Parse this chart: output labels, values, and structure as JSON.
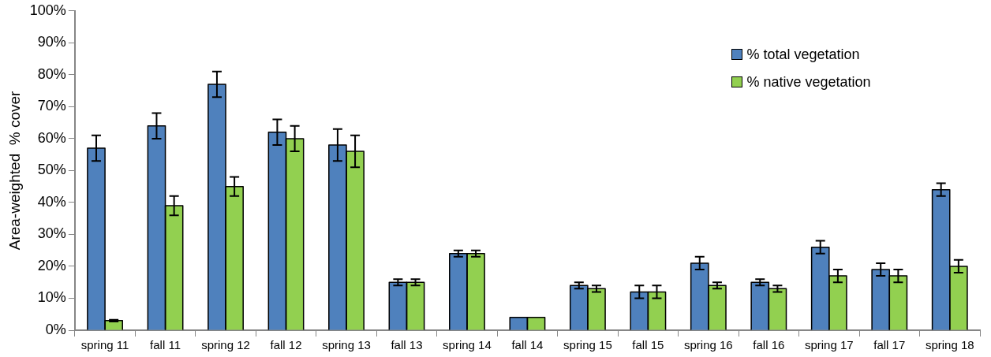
{
  "chart_data": {
    "type": "bar",
    "ylabel": "Area-weighted  % cover",
    "categories": [
      "spring 11",
      "fall 11",
      "spring 12",
      "fall 12",
      "spring 13",
      "fall 13",
      "spring 14",
      "fall 14",
      "spring 15",
      "fall 15",
      "spring 16",
      "fall 16",
      "spring 17",
      "fall 17",
      "spring 18"
    ],
    "series": [
      {
        "name": "% total vegetation",
        "color": "#4f81bd",
        "values": [
          57,
          64,
          77,
          62,
          58,
          15,
          24,
          4,
          14,
          12,
          21,
          15,
          26,
          19,
          44
        ],
        "errors": [
          4,
          4,
          4,
          4,
          5,
          1,
          1,
          null,
          1,
          2,
          2,
          1,
          2,
          2,
          2
        ]
      },
      {
        "name": "% native vegetation",
        "color": "#92d050",
        "values": [
          3,
          39,
          45,
          60,
          56,
          15,
          24,
          4,
          13,
          12,
          14,
          13,
          17,
          17,
          20
        ],
        "errors": [
          0.3,
          3,
          3,
          4,
          5,
          1,
          1,
          null,
          1,
          2,
          1,
          1,
          2,
          2,
          2
        ]
      }
    ],
    "ylim": [
      0,
      100
    ],
    "yticks": [
      {
        "value": 0,
        "label": "0%"
      },
      {
        "value": 10,
        "label": "10%"
      },
      {
        "value": 20,
        "label": "20%"
      },
      {
        "value": 30,
        "label": "30%"
      },
      {
        "value": 40,
        "label": "40%"
      },
      {
        "value": 50,
        "label": "50%"
      },
      {
        "value": 60,
        "label": "60%"
      },
      {
        "value": 70,
        "label": "70%"
      },
      {
        "value": 80,
        "label": "80%"
      },
      {
        "value": 90,
        "label": "90%"
      },
      {
        "value": 100,
        "label": "100%"
      }
    ],
    "grid": false,
    "legend": "top right"
  }
}
